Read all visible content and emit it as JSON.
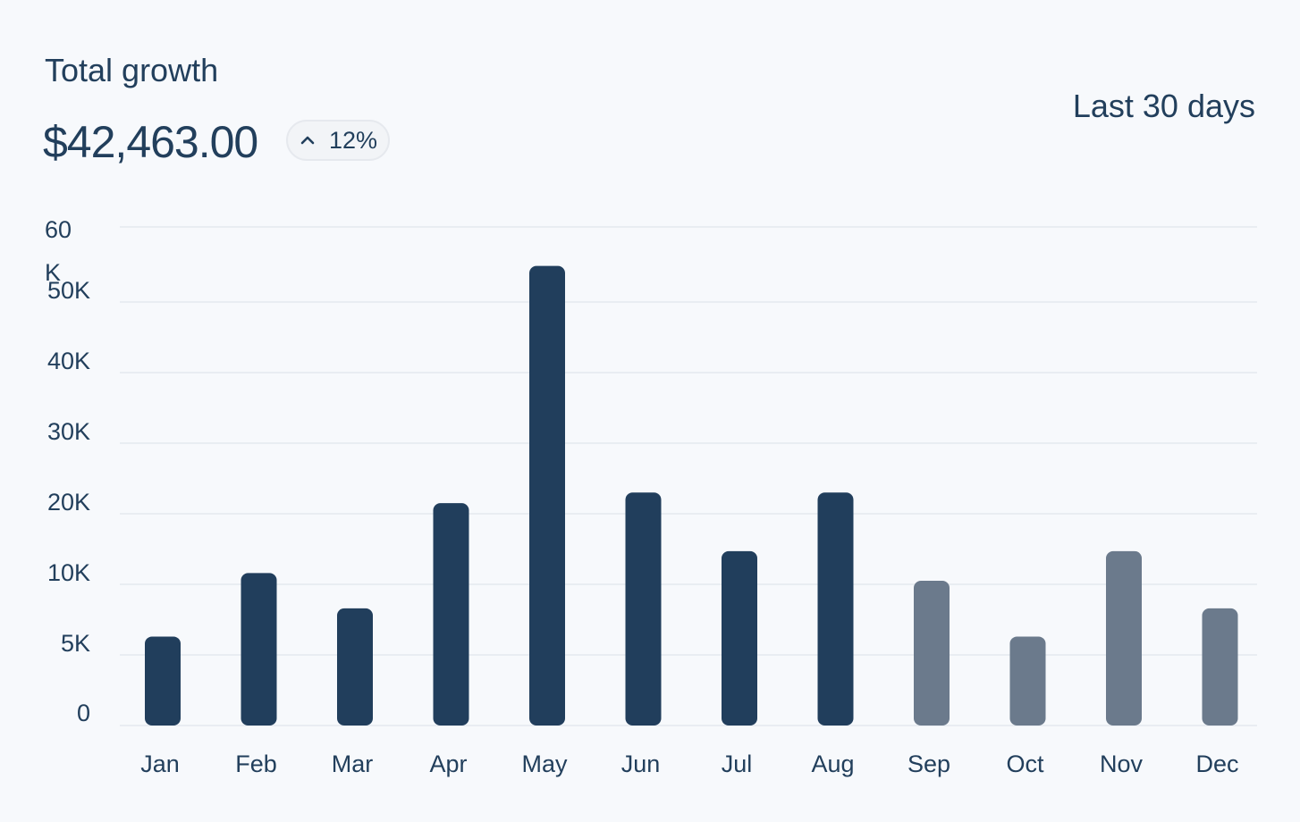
{
  "header": {
    "title": "Total growth",
    "amount": "$42,463.00",
    "change_pct": "12%",
    "change_direction_icon": "chevron-up-icon",
    "range_label": "Last 30 days"
  },
  "colors": {
    "background": "#f7f9fc",
    "text": "#223f5c",
    "bar_primary": "#213e5c",
    "bar_muted": "#6b7a8c",
    "grid": "#e9edf2"
  },
  "chart_data": {
    "type": "bar",
    "categories": [
      "Jan",
      "Feb",
      "Mar",
      "Apr",
      "May",
      "Jun",
      "Jul",
      "Aug",
      "Sep",
      "Oct",
      "Nov",
      "Dec"
    ],
    "values": [
      6300,
      11600,
      8300,
      21500,
      54800,
      23000,
      14700,
      23000,
      10500,
      6300,
      14700,
      8300
    ],
    "highlight": [
      true,
      true,
      true,
      true,
      true,
      true,
      true,
      true,
      false,
      false,
      false,
      false
    ],
    "yticks": [
      {
        "value": 0,
        "label": "0"
      },
      {
        "value": 5000,
        "label": "5K"
      },
      {
        "value": 10000,
        "label": "10K"
      },
      {
        "value": 20000,
        "label": "20K"
      },
      {
        "value": 30000,
        "label": "30K"
      },
      {
        "value": 40000,
        "label": "40K"
      },
      {
        "value": 50000,
        "label": "50K"
      },
      {
        "value": 60000,
        "label": "60 K"
      }
    ],
    "ylim": [
      0,
      60000
    ],
    "grid": true,
    "title": "",
    "xlabel": "",
    "ylabel": ""
  }
}
